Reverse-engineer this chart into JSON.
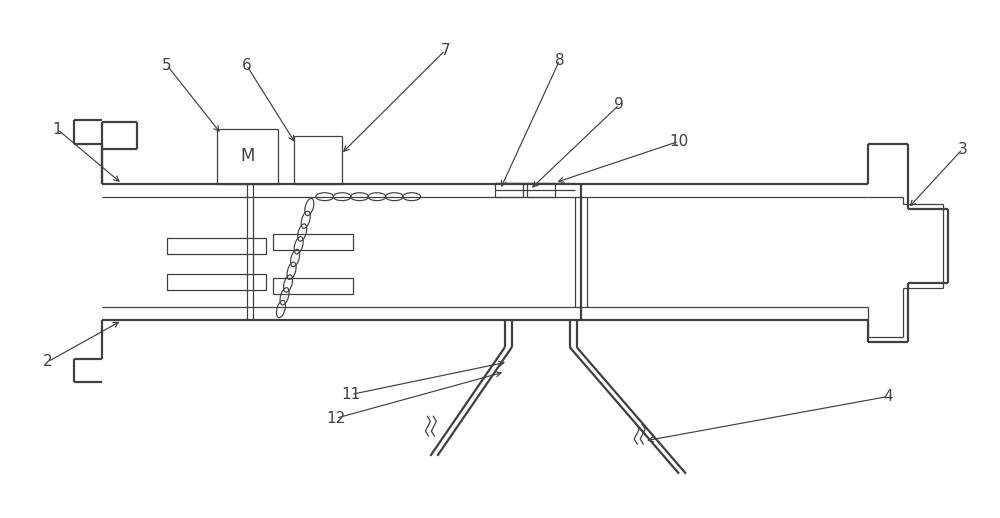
{
  "bg": "#ffffff",
  "lc": "#404040",
  "lw_outer": 1.6,
  "lw_inner": 0.9,
  "fig_w": 10.0,
  "fig_h": 5.18
}
